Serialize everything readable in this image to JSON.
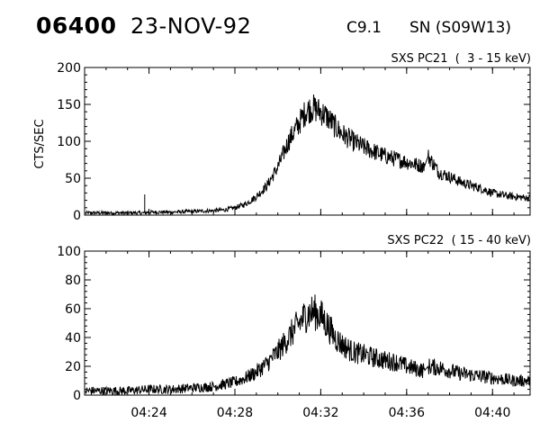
{
  "header": {
    "event_number": "06400",
    "date": "23-NOV-92",
    "flare_class": "C9.1",
    "location": "SN (S09W13)"
  },
  "chart_data": [
    {
      "type": "line",
      "title": "SXS PC21  (  3 - 15 keV)",
      "ylabel": "CTS/SEC",
      "xlabel": "",
      "x_tick_labels": [
        "04:24",
        "04:28",
        "04:32",
        "04:36",
        "04:40"
      ],
      "xlim": [
        "04:21",
        "04:41:45"
      ],
      "ylim": [
        0,
        200
      ],
      "y_ticks": [
        0,
        50,
        100,
        150,
        200
      ],
      "series": [
        {
          "time": [
            "04:21:00",
            "04:22:00",
            "04:23:00",
            "04:23:48",
            "04:24:00",
            "04:25:00",
            "04:26:00",
            "04:27:00",
            "04:27:30",
            "04:28:00",
            "04:28:30",
            "04:29:00",
            "04:29:30",
            "04:30:00",
            "04:30:30",
            "04:31:00",
            "04:31:20",
            "04:31:40",
            "04:32:00",
            "04:32:20",
            "04:32:40",
            "04:33:00",
            "04:33:30",
            "04:34:00",
            "04:34:30",
            "04:35:00",
            "04:35:30",
            "04:36:00",
            "04:36:30",
            "04:36:50",
            "04:37:00",
            "04:37:30",
            "04:38:00",
            "04:38:30",
            "04:39:00",
            "04:39:30",
            "04:40:00",
            "04:40:30",
            "04:41:00",
            "04:41:45"
          ],
          "cts": [
            3,
            3,
            3,
            3,
            4,
            4,
            5,
            6,
            7,
            10,
            15,
            25,
            40,
            65,
            100,
            125,
            142,
            145,
            140,
            132,
            120,
            110,
            100,
            92,
            86,
            80,
            76,
            72,
            68,
            66,
            80,
            58,
            52,
            45,
            40,
            36,
            30,
            27,
            25,
            23
          ],
          "spikes": [
            {
              "time": "04:23:48",
              "cts": 28
            }
          ]
        }
      ]
    },
    {
      "type": "line",
      "title": "SXS PC22  ( 15 - 40 keV)",
      "ylabel": "",
      "xlabel": "",
      "x_tick_labels": [
        "04:24",
        "04:28",
        "04:32",
        "04:36",
        "04:40"
      ],
      "xlim": [
        "04:21",
        "04:41:45"
      ],
      "ylim": [
        0,
        100
      ],
      "y_ticks": [
        0,
        20,
        40,
        60,
        80,
        100
      ],
      "series": [
        {
          "time": [
            "04:21:00",
            "04:22:00",
            "04:23:00",
            "04:24:00",
            "04:25:00",
            "04:26:00",
            "04:27:00",
            "04:28:00",
            "04:28:30",
            "04:29:00",
            "04:29:30",
            "04:30:00",
            "04:30:30",
            "04:31:00",
            "04:31:20",
            "04:31:40",
            "04:32:00",
            "04:32:20",
            "04:32:40",
            "04:33:00",
            "04:33:30",
            "04:34:00",
            "04:34:30",
            "04:35:00",
            "04:35:30",
            "04:36:00",
            "04:36:30",
            "04:36:50",
            "04:37:00",
            "04:37:30",
            "04:38:00",
            "04:38:30",
            "04:39:00",
            "04:39:30",
            "04:40:00",
            "04:40:30",
            "04:41:00",
            "04:41:45"
          ],
          "cts": [
            3,
            3,
            3,
            4,
            4,
            5,
            6,
            9,
            12,
            16,
            22,
            30,
            40,
            50,
            56,
            58,
            55,
            48,
            40,
            35,
            30,
            28,
            26,
            24,
            23,
            20,
            18,
            17,
            20,
            19,
            17,
            15,
            14,
            13,
            12,
            11,
            10,
            10
          ],
          "spikes": []
        }
      ]
    }
  ]
}
